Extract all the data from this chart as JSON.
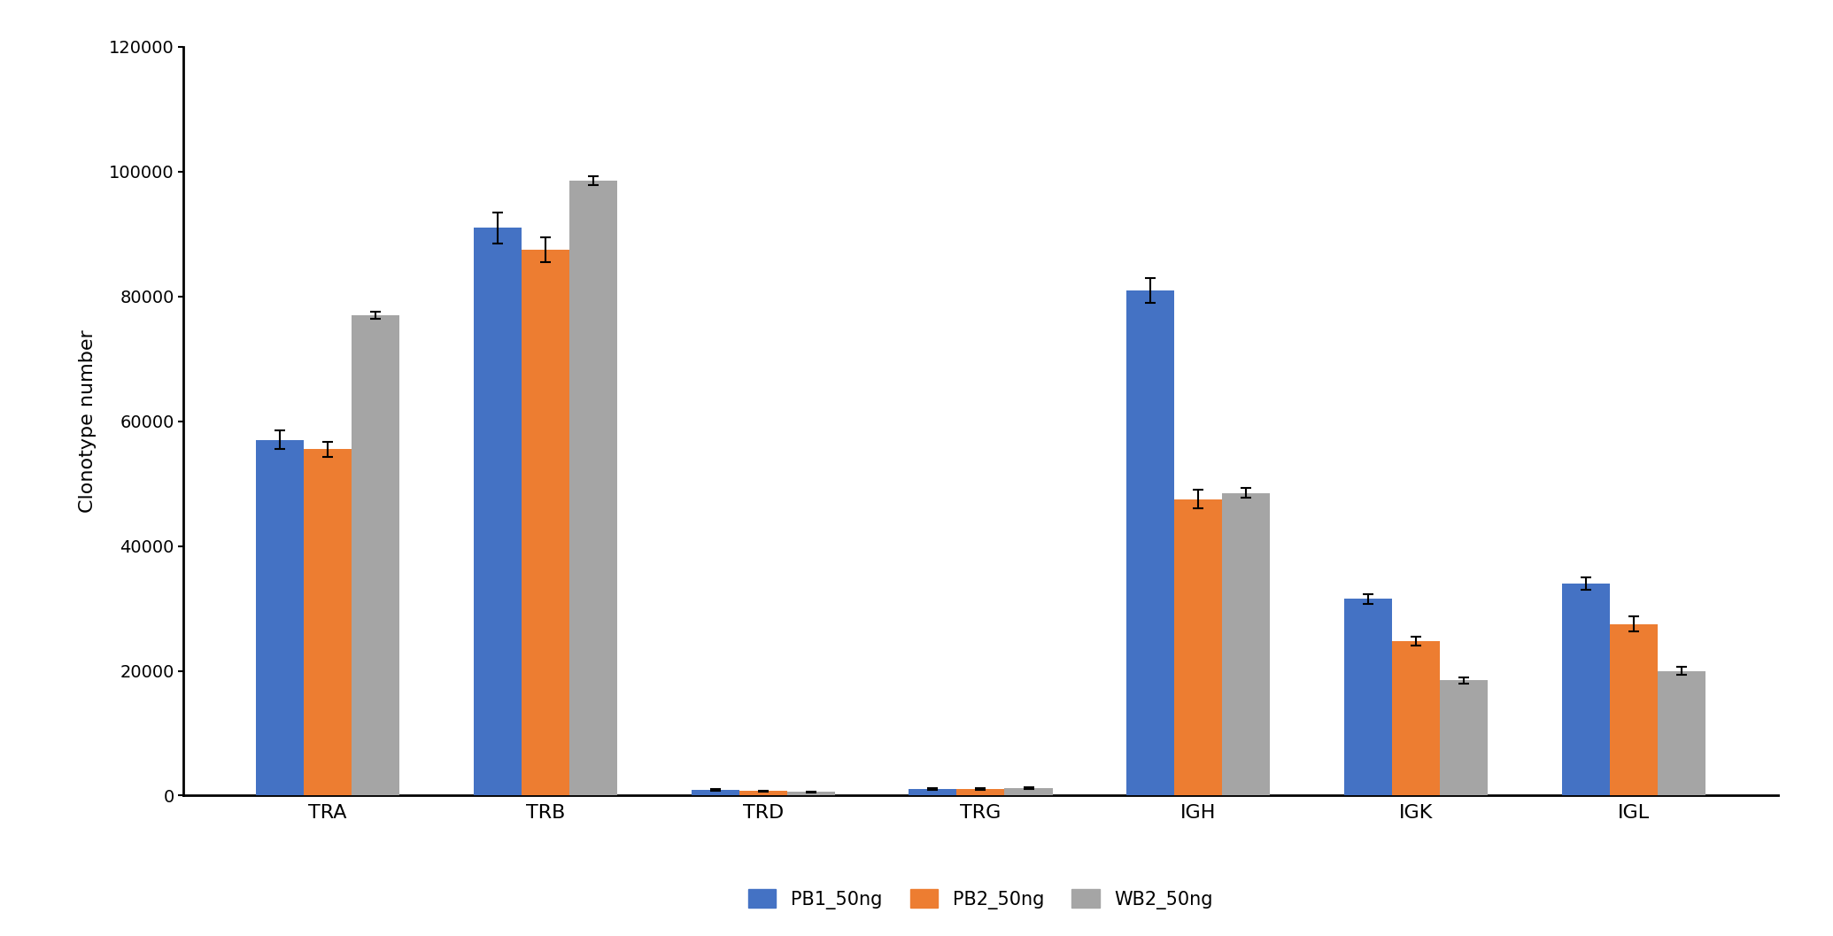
{
  "categories": [
    "TRA",
    "TRB",
    "TRD",
    "TRG",
    "IGH",
    "IGK",
    "IGL"
  ],
  "series": {
    "PB1_50ng": {
      "values": [
        57000,
        91000,
        900,
        1100,
        81000,
        31500,
        34000
      ],
      "errors": [
        1500,
        2500,
        100,
        150,
        2000,
        800,
        1000
      ],
      "color": "#4472C4"
    },
    "PB2_50ng": {
      "values": [
        55500,
        87500,
        750,
        1100,
        47500,
        24800,
        27500
      ],
      "errors": [
        1200,
        2000,
        80,
        120,
        1500,
        700,
        1200
      ],
      "color": "#ED7D31"
    },
    "WB2_50ng": {
      "values": [
        77000,
        98500,
        600,
        1200,
        48500,
        18500,
        20000
      ],
      "errors": [
        600,
        700,
        60,
        100,
        800,
        500,
        600
      ],
      "color": "#A5A5A5"
    }
  },
  "ylabel": "Clonotype number",
  "ylim": [
    0,
    120000
  ],
  "yticks": [
    0,
    20000,
    40000,
    60000,
    80000,
    100000,
    120000
  ],
  "ytick_labels": [
    "0",
    "20000",
    "40000",
    "60000",
    "80000",
    "100000",
    "120000"
  ],
  "bar_width": 0.22,
  "legend_labels": [
    "PB1_50ng",
    "PB2_50ng",
    "WB2_50ng"
  ],
  "background_color": "#FFFFFF",
  "figure_width": 20.7,
  "figure_height": 10.57,
  "dpi": 100
}
